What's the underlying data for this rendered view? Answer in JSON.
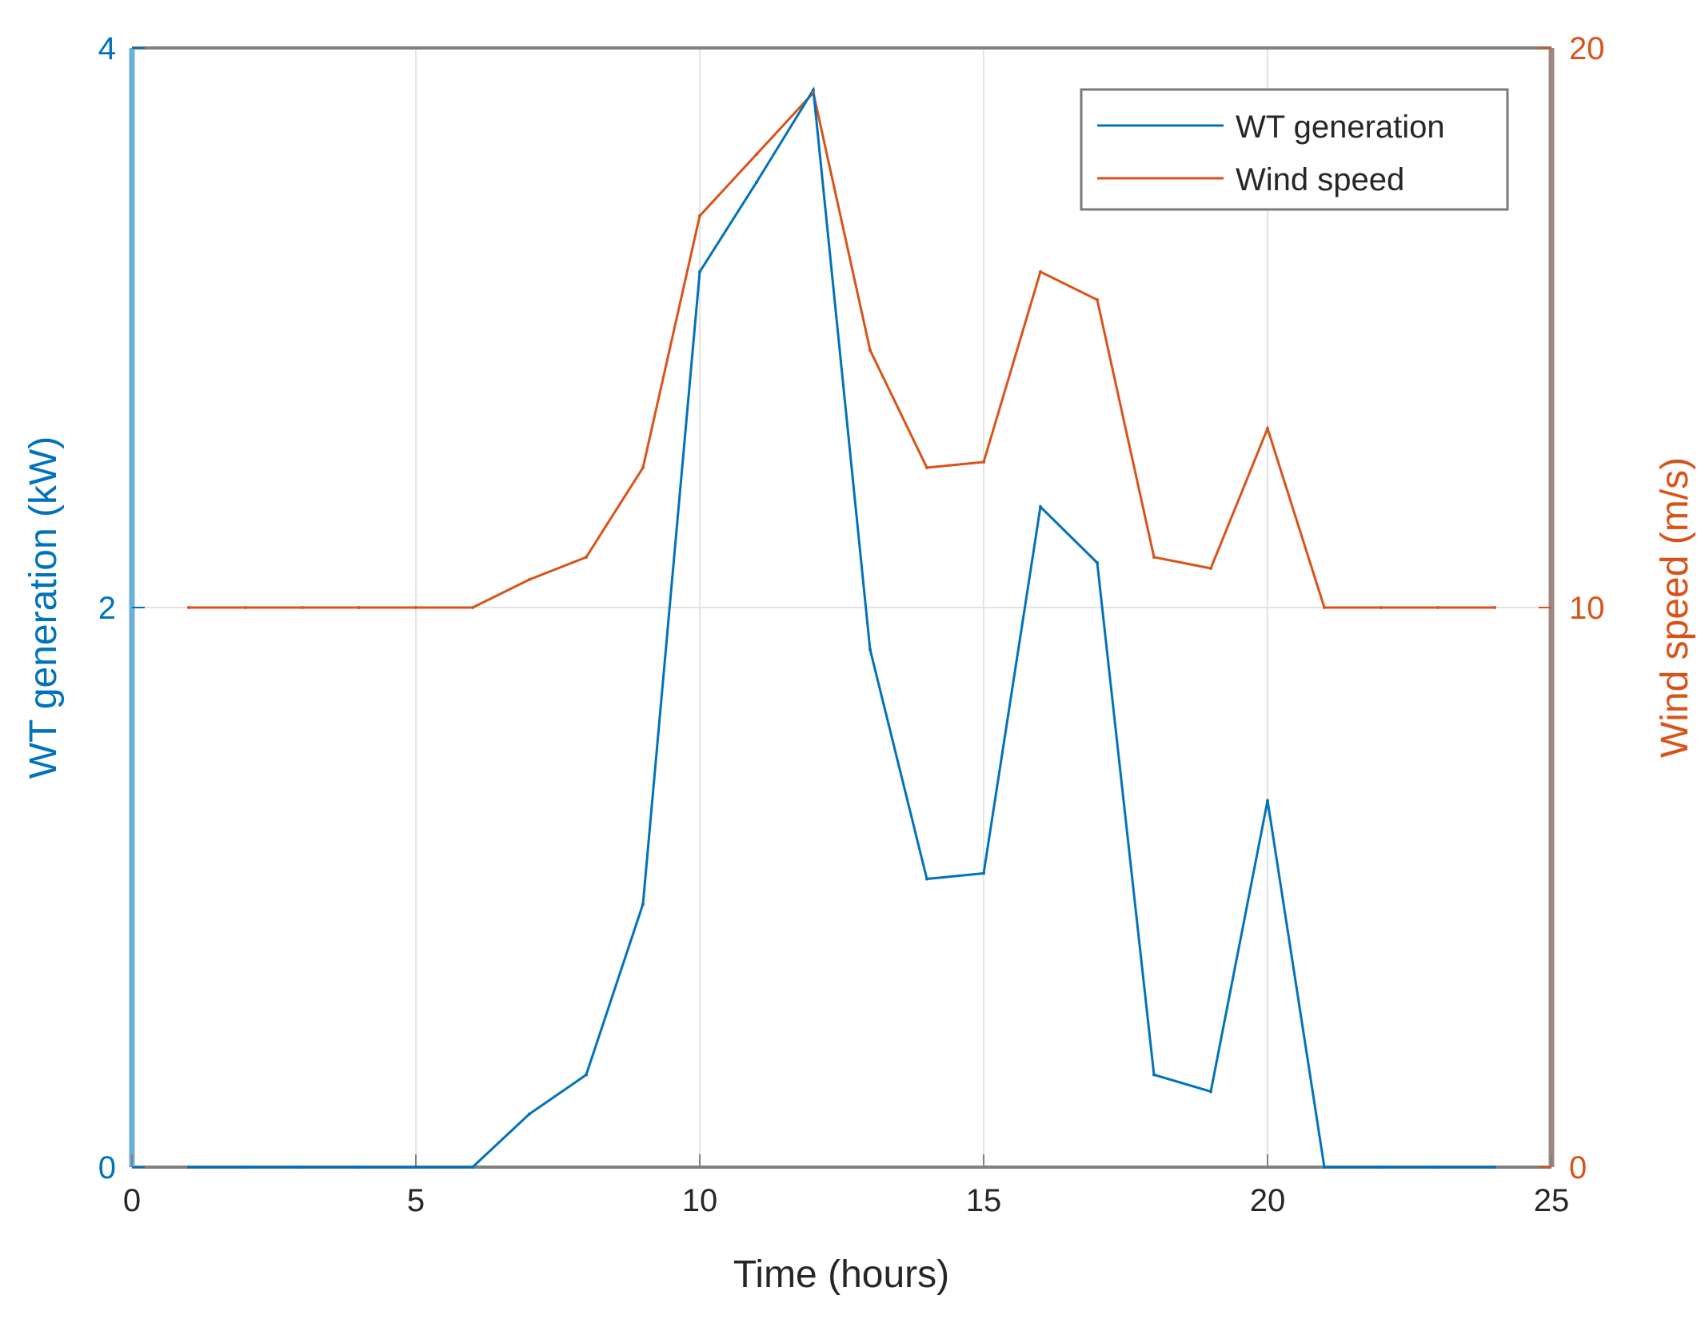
{
  "chart_data": {
    "type": "line",
    "xlabel": "Time (hours)",
    "ylabel_left": "WT generation (kW)",
    "ylabel_right": "Wind speed (m/s)",
    "xlim": [
      0,
      25
    ],
    "ylim_left": [
      0,
      4
    ],
    "ylim_right": [
      0,
      20
    ],
    "x_ticks": [
      "0",
      "5",
      "10",
      "15",
      "20",
      "25"
    ],
    "y_ticks_left": [
      "0",
      "2",
      "4"
    ],
    "y_ticks_right": [
      "0",
      "10",
      "20"
    ],
    "grid": true,
    "legend_position": "top-right",
    "x": [
      1,
      2,
      3,
      4,
      5,
      6,
      7,
      8,
      9,
      10,
      11,
      12,
      13,
      14,
      15,
      16,
      17,
      18,
      19,
      20,
      21,
      22,
      23,
      24
    ],
    "series": [
      {
        "name": "WT generation",
        "axis": "left",
        "color": "#0072BD",
        "values": [
          0,
          0,
          0,
          0,
          0,
          0,
          0.19,
          0.33,
          0.94,
          3.2,
          3.52,
          3.85,
          1.85,
          1.03,
          1.05,
          2.36,
          2.16,
          0.33,
          0.27,
          1.31,
          0,
          0,
          0,
          0
        ]
      },
      {
        "name": "Wind speed",
        "axis": "right",
        "color": "#D95319",
        "values": [
          10,
          10,
          10,
          10,
          10,
          10,
          10.5,
          10.9,
          12.5,
          17.0,
          18.1,
          19.2,
          14.6,
          12.5,
          12.6,
          16.0,
          15.5,
          10.9,
          10.7,
          13.2,
          10,
          10,
          10,
          10
        ]
      }
    ]
  }
}
